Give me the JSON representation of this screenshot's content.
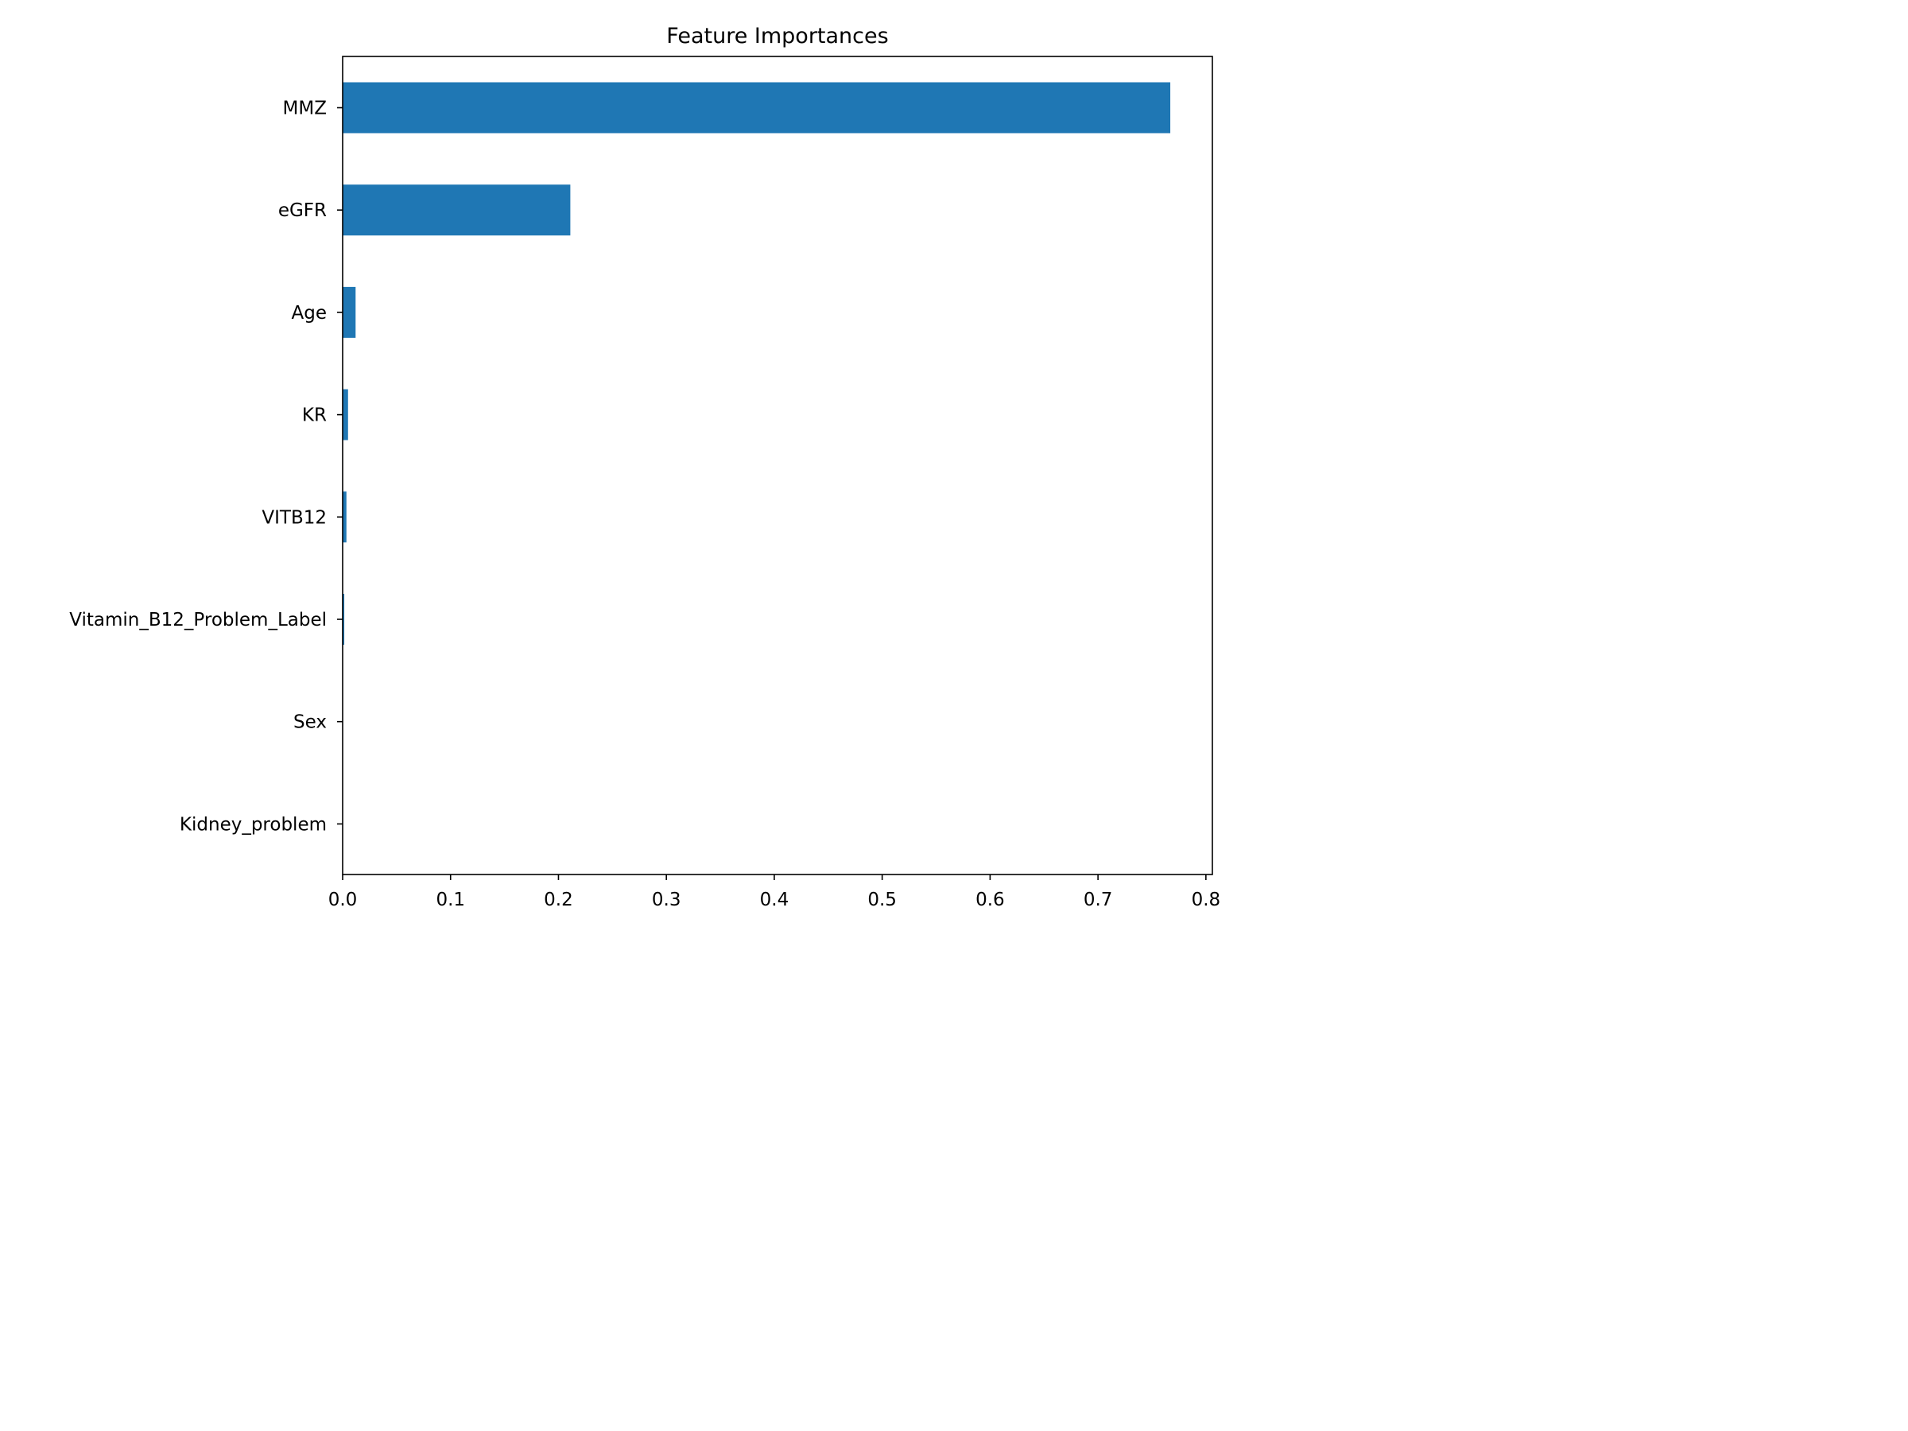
{
  "chart_data": {
    "type": "bar",
    "orientation": "horizontal",
    "title": "Feature Importances",
    "xlabel": "",
    "ylabel": "",
    "categories": [
      "MMZ",
      "eGFR",
      "Age",
      "KR",
      "VITB12",
      "Vitamin_B12_Problem_Label",
      "Sex",
      "Kidney_problem"
    ],
    "values": [
      0.767,
      0.211,
      0.012,
      0.005,
      0.0035,
      0.0015,
      0.0,
      0.0
    ],
    "xlim": [
      0.0,
      0.806
    ],
    "xticks": [
      "0.0",
      "0.1",
      "0.2",
      "0.3",
      "0.4",
      "0.5",
      "0.6",
      "0.7",
      "0.8"
    ],
    "grid": false,
    "legend": "none",
    "bar_color": "#1f77b4"
  }
}
